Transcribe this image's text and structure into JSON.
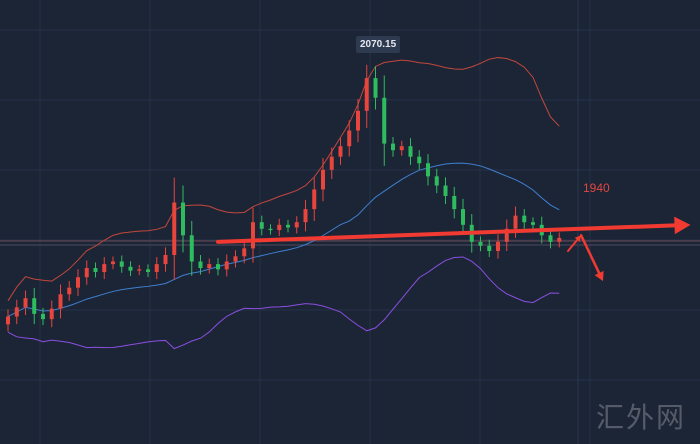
{
  "chart_data": {
    "type": "candlestick",
    "indicator": "bollinger-bands",
    "closes": [
      1878,
      1885,
      1892,
      1880,
      1876,
      1884,
      1895,
      1900,
      1908,
      1915,
      1912,
      1918,
      1920,
      1916,
      1913,
      1914,
      1912,
      1918,
      1925,
      1965,
      1940,
      1920,
      1915,
      1918,
      1914,
      1920,
      1924,
      1930,
      1950,
      1945,
      1944,
      1948,
      1946,
      1950,
      1960,
      1975,
      1990,
      2000,
      2008,
      2020,
      2035,
      2060,
      2045,
      2010,
      2005,
      2008,
      2000,
      1995,
      1985,
      1978,
      1970,
      1960,
      1948,
      1935,
      1932,
      1928,
      1935,
      1945,
      1955,
      1950,
      1948,
      1940,
      1935,
      1938
    ],
    "first_open": 1872,
    "high_label": "2070.15",
    "high_value": 2070.15,
    "level_label": "1940",
    "arrow_main": {
      "from": [
        24,
        1935
      ],
      "to": [
        78,
        1948
      ]
    },
    "arrow_up": {
      "from": [
        64,
        1928
      ],
      "to": [
        65.5,
        1940
      ]
    },
    "arrow_down": {
      "from": [
        65.5,
        1940
      ],
      "to": [
        68,
        1905
      ]
    },
    "colors": {
      "up": "#e8453c",
      "down": "#2ebd5e",
      "upper": "#c2473d",
      "middle": "#3f7fd0",
      "lower": "#8a4fe0",
      "arrow": "#f03a32",
      "background": "#1c2536"
    },
    "grid": true
  },
  "watermark": "汇外网"
}
